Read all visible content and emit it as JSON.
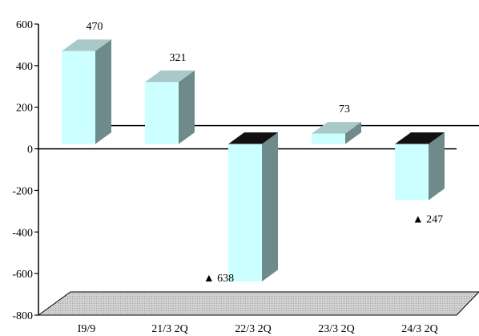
{
  "chart_data": {
    "type": "bar",
    "title": "",
    "xlabel": "",
    "ylabel": "",
    "categories": [
      "I9/9",
      "21/3 2Q",
      "22/3 2Q",
      "23/3 2Q",
      "24/3 2Q"
    ],
    "values": [
      470,
      321,
      -638,
      73,
      -247
    ],
    "data_labels": [
      "470",
      "321",
      "▲ 638",
      "73",
      "▲ 247"
    ],
    "ylim": [
      -800,
      600
    ],
    "yticks": [
      600,
      400,
      200,
      0,
      -200,
      -400,
      -600,
      -800
    ],
    "ytick_labels": [
      "600",
      "400",
      "200",
      "0",
      "-200",
      "-400",
      "-600",
      "-800"
    ],
    "grid": false,
    "legend": "none",
    "style": "3d-column",
    "colors": {
      "bar_face": "#ccffff",
      "bar_side": "#6f8a8a",
      "bar_top": "#a9c9c9",
      "bar_neg_top": "#111111",
      "floor": "#c8c8c8",
      "axis": "#000000"
    }
  }
}
